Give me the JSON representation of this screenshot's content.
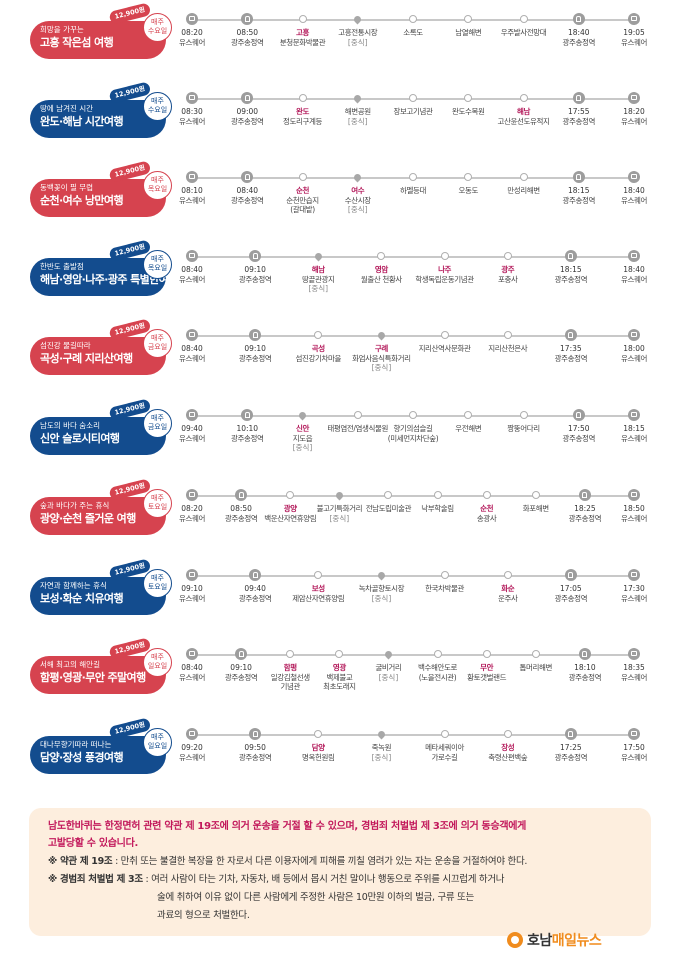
{
  "routes": [
    {
      "subtitle": "희망을 가꾸는",
      "name": "고흥 작은섬 여행",
      "price": "12,900원",
      "day": [
        "매주",
        "수요일"
      ],
      "color": "red",
      "stops": [
        {
          "time": "08:20",
          "name": "유스퀘어",
          "icon": "bus-icon"
        },
        {
          "time": "08:50",
          "name": "광주송정역",
          "icon": "train-icon"
        },
        {
          "name": "고흥",
          "highlight": true,
          "line2": "분청문화박물관",
          "icon": "dot"
        },
        {
          "name": "고흥전통시장",
          "meal": "[중식]",
          "icon": "meal-pin-icon"
        },
        {
          "name": "소록도",
          "icon": "dot"
        },
        {
          "name": "남열해변",
          "icon": "dot"
        },
        {
          "name": "우주발사전망대",
          "icon": "dot"
        },
        {
          "time": "18:40",
          "name": "광주송정역",
          "icon": "train-icon"
        },
        {
          "time": "19:05",
          "name": "유스퀘어",
          "icon": "bus-icon"
        }
      ]
    },
    {
      "subtitle": "땅에 남겨진 시간",
      "name": "완도·해남 시간여행",
      "price": "12,900원",
      "day": [
        "매주",
        "수요일"
      ],
      "color": "blue",
      "stops": [
        {
          "time": "08:30",
          "name": "유스퀘어",
          "icon": "bus-icon"
        },
        {
          "time": "09:00",
          "name": "광주송정역",
          "icon": "train-icon"
        },
        {
          "name": "완도",
          "highlight": true,
          "line2": "정도리구계등",
          "icon": "dot"
        },
        {
          "name": "해변공원",
          "meal": "[중식]",
          "icon": "meal-pin-icon"
        },
        {
          "name": "장보고기념관",
          "icon": "dot"
        },
        {
          "name": "완도수목원",
          "icon": "dot"
        },
        {
          "name": "해남",
          "highlight": true,
          "line2": "고산윤선도유적지",
          "icon": "dot"
        },
        {
          "time": "17:55",
          "name": "광주송정역",
          "icon": "train-icon"
        },
        {
          "time": "18:20",
          "name": "유스퀘어",
          "icon": "bus-icon"
        }
      ]
    },
    {
      "subtitle": "동백꽃이 필 무렵",
      "name": "순천·여수 낭만여행",
      "price": "12,900원",
      "day": [
        "매주",
        "목요일"
      ],
      "color": "red",
      "stops": [
        {
          "time": "08:10",
          "name": "유스퀘어",
          "icon": "bus-icon"
        },
        {
          "time": "08:40",
          "name": "광주송정역",
          "icon": "train-icon"
        },
        {
          "name": "순천",
          "highlight": true,
          "line2": "순천만습지",
          "line3": "(갈대밭)",
          "icon": "dot"
        },
        {
          "name": "여수",
          "highlight": true,
          "line2": "수산시장",
          "meal": "[중식]",
          "icon": "meal-pin-icon"
        },
        {
          "name": "하멜등대",
          "icon": "dot"
        },
        {
          "name": "오동도",
          "icon": "dot"
        },
        {
          "name": "만성리해변",
          "icon": "dot"
        },
        {
          "time": "18:15",
          "name": "광주송정역",
          "icon": "train-icon"
        },
        {
          "time": "18:40",
          "name": "유스퀘어",
          "icon": "bus-icon"
        }
      ]
    },
    {
      "subtitle": "한반도 출발점",
      "name": "해남·영암·나주·광주 특별한여행",
      "price": "12,900원",
      "day": [
        "매주",
        "목요일"
      ],
      "color": "blue",
      "stops": [
        {
          "time": "08:40",
          "name": "유스퀘어",
          "icon": "bus-icon"
        },
        {
          "time": "09:10",
          "name": "광주송정역",
          "icon": "train-icon"
        },
        {
          "name": "해남",
          "highlight": true,
          "line2": "땅끝관광지",
          "meal": "[중식]",
          "icon": "meal-pin-icon"
        },
        {
          "name": "영암",
          "highlight": true,
          "line2": "월출산 천황사",
          "icon": "dot"
        },
        {
          "name": "나주",
          "highlight": true,
          "line2": "학생독립운동기념관",
          "icon": "dot"
        },
        {
          "name": "광주",
          "highlight": true,
          "line2": "포충사",
          "icon": "dot"
        },
        {
          "time": "18:15",
          "name": "광주송정역",
          "icon": "train-icon"
        },
        {
          "time": "18:40",
          "name": "유스퀘어",
          "icon": "bus-icon"
        }
      ]
    },
    {
      "subtitle": "섬진강 물길따라",
      "name": "곡성·구례 지리산여행",
      "price": "12,900원",
      "day": [
        "매주",
        "금요일"
      ],
      "color": "red",
      "stops": [
        {
          "time": "08:40",
          "name": "유스퀘어",
          "icon": "bus-icon"
        },
        {
          "time": "09:10",
          "name": "광주송정역",
          "icon": "train-icon"
        },
        {
          "name": "곡성",
          "highlight": true,
          "line2": "섬진강기차마을",
          "icon": "dot"
        },
        {
          "name": "구례",
          "highlight": true,
          "line2": "화엄사음식특화거리",
          "meal": "[중식]",
          "icon": "meal-pin-icon"
        },
        {
          "name": "지리산역사문화관",
          "icon": "dot"
        },
        {
          "name": "지리산천은사",
          "icon": "dot"
        },
        {
          "time": "17:35",
          "name": "광주송정역",
          "icon": "train-icon"
        },
        {
          "time": "18:00",
          "name": "유스퀘어",
          "icon": "bus-icon"
        }
      ]
    },
    {
      "subtitle": "남도의 바다 숨소리",
      "name": "신안 슬로시티여행",
      "price": "12,900원",
      "day": [
        "매주",
        "금요일"
      ],
      "color": "blue",
      "stops": [
        {
          "time": "09:40",
          "name": "유스퀘어",
          "icon": "bus-icon"
        },
        {
          "time": "10:10",
          "name": "광주송정역",
          "icon": "train-icon"
        },
        {
          "name": "신안",
          "highlight": true,
          "line2": "지도읍",
          "meal": "[중식]",
          "icon": "meal-pin-icon"
        },
        {
          "name": "태평염전/염생식물원",
          "icon": "dot"
        },
        {
          "name": "향기의섬슬길",
          "line2": "(미세먼지차단숲)",
          "icon": "dot"
        },
        {
          "name": "우전해변",
          "icon": "dot"
        },
        {
          "name": "짱뚱어다리",
          "icon": "dot"
        },
        {
          "time": "17:50",
          "name": "광주송정역",
          "icon": "train-icon"
        },
        {
          "time": "18:15",
          "name": "유스퀘어",
          "icon": "bus-icon"
        }
      ]
    },
    {
      "subtitle": "숲과 바다가 주는 휴식",
      "name": "광양·순천 즐거운 여행",
      "price": "12,900원",
      "day": [
        "매주",
        "토요일"
      ],
      "color": "red",
      "stops": [
        {
          "time": "08:20",
          "name": "유스퀘어",
          "icon": "bus-icon"
        },
        {
          "time": "08:50",
          "name": "광주송정역",
          "icon": "train-icon"
        },
        {
          "name": "광양",
          "highlight": true,
          "line2": "백운산자연휴양림",
          "icon": "dot"
        },
        {
          "name": "불고기특화거리",
          "meal": "[중식]",
          "icon": "meal-pin-icon"
        },
        {
          "name": "전남도립미술관",
          "icon": "dot"
        },
        {
          "name": "낙부학술림",
          "icon": "dot"
        },
        {
          "name": "순천",
          "highlight": true,
          "line2": "송광사",
          "icon": "dot"
        },
        {
          "name": "화포해변",
          "icon": "dot"
        },
        {
          "time": "18:25",
          "name": "광주송정역",
          "icon": "train-icon"
        },
        {
          "time": "18:50",
          "name": "유스퀘어",
          "icon": "bus-icon"
        }
      ]
    },
    {
      "subtitle": "자연과 함께하는 휴식",
      "name": "보성·화순 치유여행",
      "price": "12,900원",
      "day": [
        "매주",
        "토요일"
      ],
      "color": "blue",
      "stops": [
        {
          "time": "09:10",
          "name": "유스퀘어",
          "icon": "bus-icon"
        },
        {
          "time": "09:40",
          "name": "광주송정역",
          "icon": "train-icon"
        },
        {
          "name": "보성",
          "highlight": true,
          "line2": "제암산자연휴양림",
          "icon": "dot"
        },
        {
          "name": "녹차골향토시장",
          "meal": "[중식]",
          "icon": "meal-pin-icon"
        },
        {
          "name": "한국차박물관",
          "icon": "dot"
        },
        {
          "name": "화순",
          "highlight": true,
          "line2": "운주사",
          "icon": "dot"
        },
        {
          "time": "17:05",
          "name": "광주송정역",
          "icon": "train-icon"
        },
        {
          "time": "17:30",
          "name": "유스퀘어",
          "icon": "bus-icon"
        }
      ]
    },
    {
      "subtitle": "서해 최고의 해안길",
      "name": "함평·영광·무안 주말여행",
      "price": "12,900원",
      "day": [
        "매주",
        "일요일"
      ],
      "color": "red",
      "stops": [
        {
          "time": "08:40",
          "name": "유스퀘어",
          "icon": "bus-icon"
        },
        {
          "time": "09:10",
          "name": "광주송정역",
          "icon": "train-icon"
        },
        {
          "name": "함평",
          "highlight": true,
          "line2": "일강김철선생",
          "line3": "기념관",
          "icon": "dot"
        },
        {
          "name": "영광",
          "highlight": true,
          "line2": "백제불교",
          "line3": "최초도래지",
          "icon": "dot"
        },
        {
          "name": "굴비거리",
          "meal": "[중식]",
          "icon": "meal-pin-icon"
        },
        {
          "name": "백수해안도로",
          "line2": "(노을전시관)",
          "icon": "dot"
        },
        {
          "name": "무안",
          "highlight": true,
          "line2": "황토갯벌랜드",
          "icon": "dot"
        },
        {
          "name": "톱머리해변",
          "icon": "dot"
        },
        {
          "time": "18:10",
          "name": "광주송정역",
          "icon": "train-icon"
        },
        {
          "time": "18:35",
          "name": "유스퀘어",
          "icon": "bus-icon"
        }
      ]
    },
    {
      "subtitle": "대나무향기따라 떠나는",
      "name": "담양·장성 풍경여행",
      "price": "12,900원",
      "day": [
        "매주",
        "일요일"
      ],
      "color": "blue",
      "stops": [
        {
          "time": "09:20",
          "name": "유스퀘어",
          "icon": "bus-icon"
        },
        {
          "time": "09:50",
          "name": "광주송정역",
          "icon": "train-icon"
        },
        {
          "name": "담양",
          "highlight": true,
          "line2": "명옥헌원림",
          "icon": "dot"
        },
        {
          "name": "죽녹원",
          "meal": "[중식]",
          "icon": "meal-pin-icon"
        },
        {
          "name": "메타세쿼이아",
          "line2": "가로수길",
          "icon": "dot"
        },
        {
          "name": "장성",
          "highlight": true,
          "line2": "축령산편백숲",
          "icon": "dot"
        },
        {
          "time": "17:25",
          "name": "광주송정역",
          "icon": "train-icon"
        },
        {
          "time": "17:50",
          "name": "유스퀘어",
          "icon": "bus-icon"
        }
      ]
    }
  ],
  "notice": {
    "warning_line1": "남도한바퀴는 한정면허 관련 약관 제 19조에 의거 운송을 거절 할 수 있으며, 경범죄 처벌법 제 3조에 의거 동승객에게",
    "warning_line2": "고발당할 수 있습니다.",
    "rule1_title": "※ 약관 제 19조",
    "rule1_text": " : 만취 또는 불결한 복장을 한 자로서 다른 이용자에게 피해를 끼칠 염려가 있는 자는 운송을 거절하여야 한다.",
    "rule2_title": "※ 경범죄 처벌법 제 3조",
    "rule2_text": " : 여러 사람이 타는 기차, 자동차, 배 등에서 몹시 거친 말이나 행동으로 주위를 시끄럽게 하거나",
    "rule2_line2": "술에 취하여 이유 없이 다른 사람에게 주정한 사람은 10만원 이하의 벌금, 구류 또는",
    "rule2_line3": "과료의 형으로 처벌한다."
  },
  "brand": {
    "part1": "호남",
    "part2": "매일뉴스",
    "icon": "logo-icon"
  }
}
